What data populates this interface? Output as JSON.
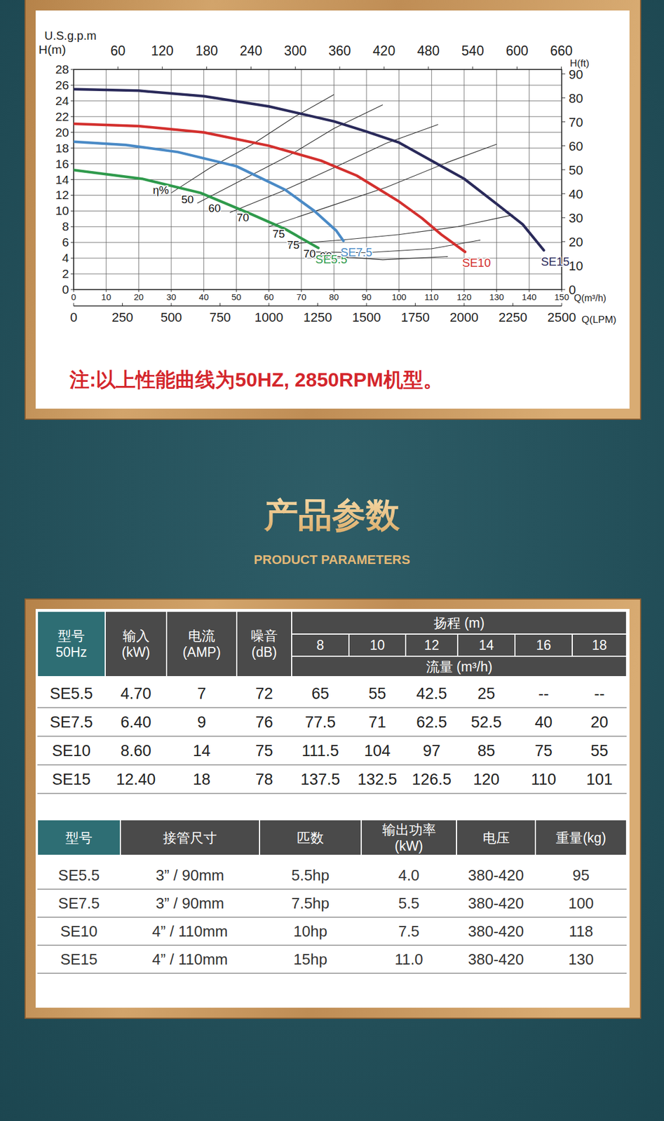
{
  "chart_data": {
    "type": "line",
    "ylabel": "H(m)",
    "y2label": "H(ft)",
    "x2label": "U.S.g.p.m",
    "xlabel": "Q(m³/h)",
    "x3label": "Q(LPM)",
    "xlim": [
      0,
      150
    ],
    "xticks": [
      0,
      10,
      20,
      30,
      40,
      50,
      60,
      70,
      80,
      90,
      100,
      110,
      120,
      130,
      140,
      150
    ],
    "x2lim": [
      0,
      660.43
    ],
    "x2ticks": [
      60,
      120,
      180,
      240,
      300,
      360,
      420,
      480,
      540,
      600,
      660
    ],
    "x3lim": [
      0,
      2500
    ],
    "x3ticks": [
      0,
      250,
      500,
      750,
      1000,
      1250,
      1500,
      1750,
      2000,
      2250,
      2500
    ],
    "ylim": [
      0,
      28
    ],
    "yticks": [
      0,
      2,
      4,
      6,
      8,
      10,
      12,
      14,
      16,
      18,
      20,
      22,
      24,
      26,
      28
    ],
    "y2lim": [
      0,
      91.86
    ],
    "y2ticks": [
      0,
      10,
      20,
      30,
      40,
      50,
      60,
      70,
      80,
      90
    ],
    "grid": true,
    "series": [
      {
        "name": "SE5.5",
        "color": "#2f9a4c",
        "x": [
          0,
          21,
          39,
          54,
          65,
          75.2
        ],
        "values": [
          15.2,
          14.1,
          12.3,
          9.7,
          7.7,
          5.3
        ]
      },
      {
        "name": "SE7.5",
        "color": "#4a8ac6",
        "x": [
          0,
          16,
          32,
          50,
          65,
          74,
          80.7,
          82.9
        ],
        "values": [
          18.8,
          18.4,
          17.5,
          15.7,
          12.7,
          10.0,
          7.5,
          6.2
        ]
      },
      {
        "name": "SE10",
        "color": "#d3302e",
        "x": [
          0,
          20,
          40,
          60,
          76,
          87,
          100,
          107,
          113,
          120.3
        ],
        "values": [
          21.1,
          20.8,
          20.0,
          18.3,
          16.4,
          14.5,
          11.2,
          9.1,
          7.0,
          4.8
        ]
      },
      {
        "name": "SE15",
        "color": "#2a2a5a",
        "x": [
          0,
          20,
          40,
          60,
          80,
          90,
          100,
          110,
          120,
          130,
          138,
          144.5
        ],
        "values": [
          25.5,
          25.3,
          24.6,
          23.3,
          21.4,
          20.1,
          18.7,
          16.4,
          14.1,
          10.9,
          8.3,
          5.0
        ]
      }
    ],
    "efficiency_lines": [
      {
        "x": [
          30,
          42,
          55,
          68,
          80
        ],
        "values": [
          12.3,
          15.5,
          18.5,
          22.0,
          24.8
        ]
      },
      {
        "x": [
          38,
          52,
          66,
          80,
          95
        ],
        "values": [
          11.0,
          14.0,
          17.0,
          20.5,
          23.5
        ]
      },
      {
        "x": [
          48,
          64,
          80,
          96,
          112
        ],
        "values": [
          9.8,
          12.5,
          15.5,
          18.6,
          21.0
        ]
      },
      {
        "x": [
          60,
          78,
          96,
          115,
          130
        ],
        "values": [
          8.0,
          10.5,
          13.0,
          16.2,
          18.5
        ]
      },
      {
        "x": [
          66,
          82,
          100,
          118,
          135
        ],
        "values": [
          5.8,
          6.3,
          7.0,
          8.0,
          9.5
        ]
      },
      {
        "x": [
          72,
          90,
          110,
          125
        ],
        "values": [
          4.8,
          4.7,
          5.2,
          6.3
        ]
      },
      {
        "x": [
          78,
          95,
          115
        ],
        "values": [
          4.3,
          3.8,
          4.2
        ]
      }
    ],
    "annotations": [
      {
        "text": "η%",
        "x": 26.8,
        "y": 12.7
      },
      {
        "text": "50",
        "x": 35,
        "y": 11.5
      },
      {
        "text": "60",
        "x": 43.3,
        "y": 10.4
      },
      {
        "text": "70",
        "x": 52,
        "y": 9.2
      },
      {
        "text": "75",
        "x": 63,
        "y": 7.1
      },
      {
        "text": "75",
        "x": 67.5,
        "y": 5.7
      },
      {
        "text": "70",
        "x": 72.5,
        "y": 4.6
      },
      {
        "text": "60",
        "x": 77.5,
        "y": 4.3
      }
    ],
    "note": "注:以上性能曲线为50HZ, 2850RPM机型。"
  },
  "section_title": "产品参数",
  "section_subtitle": "PRODUCT PARAMETERS",
  "table1": {
    "head": [
      [
        "型号",
        "50Hz"
      ],
      [
        "输入",
        "(kW)"
      ],
      [
        "电流",
        "(AMP)"
      ],
      [
        "噪音",
        "(dB)"
      ]
    ],
    "group_title": "扬程 (m)",
    "heads": [
      8,
      10,
      12,
      14,
      16,
      18
    ],
    "sub_title": "流量 (m³/h)",
    "rows": [
      [
        "SE5.5",
        "4.70",
        "7",
        "72",
        "65",
        "55",
        "42.5",
        "25",
        "--",
        "--"
      ],
      [
        "SE7.5",
        "6.40",
        "9",
        "76",
        "77.5",
        "71",
        "62.5",
        "52.5",
        "40",
        "20"
      ],
      [
        "SE10",
        "8.60",
        "14",
        "75",
        "111.5",
        "104",
        "97",
        "85",
        "75",
        "55"
      ],
      [
        "SE15",
        "12.40",
        "18",
        "78",
        "137.5",
        "132.5",
        "126.5",
        "120",
        "110",
        "101"
      ]
    ]
  },
  "table2": {
    "head": [
      [
        "型号"
      ],
      [
        "接管尺寸"
      ],
      [
        "匹数"
      ],
      [
        "输出功率",
        "(kW)"
      ],
      [
        "电压"
      ],
      [
        "重量(kg)"
      ]
    ],
    "rows": [
      [
        "SE5.5",
        "3” / 90mm",
        "5.5hp",
        "4.0",
        "380-420",
        "95"
      ],
      [
        "SE7.5",
        "3” / 90mm",
        "7.5hp",
        "5.5",
        "380-420",
        "100"
      ],
      [
        "SE10",
        "4” / 110mm",
        "10hp",
        "7.5",
        "380-420",
        "118"
      ],
      [
        "SE15",
        "4” / 110mm",
        "15hp",
        "11.0",
        "380-420",
        "130"
      ]
    ]
  }
}
